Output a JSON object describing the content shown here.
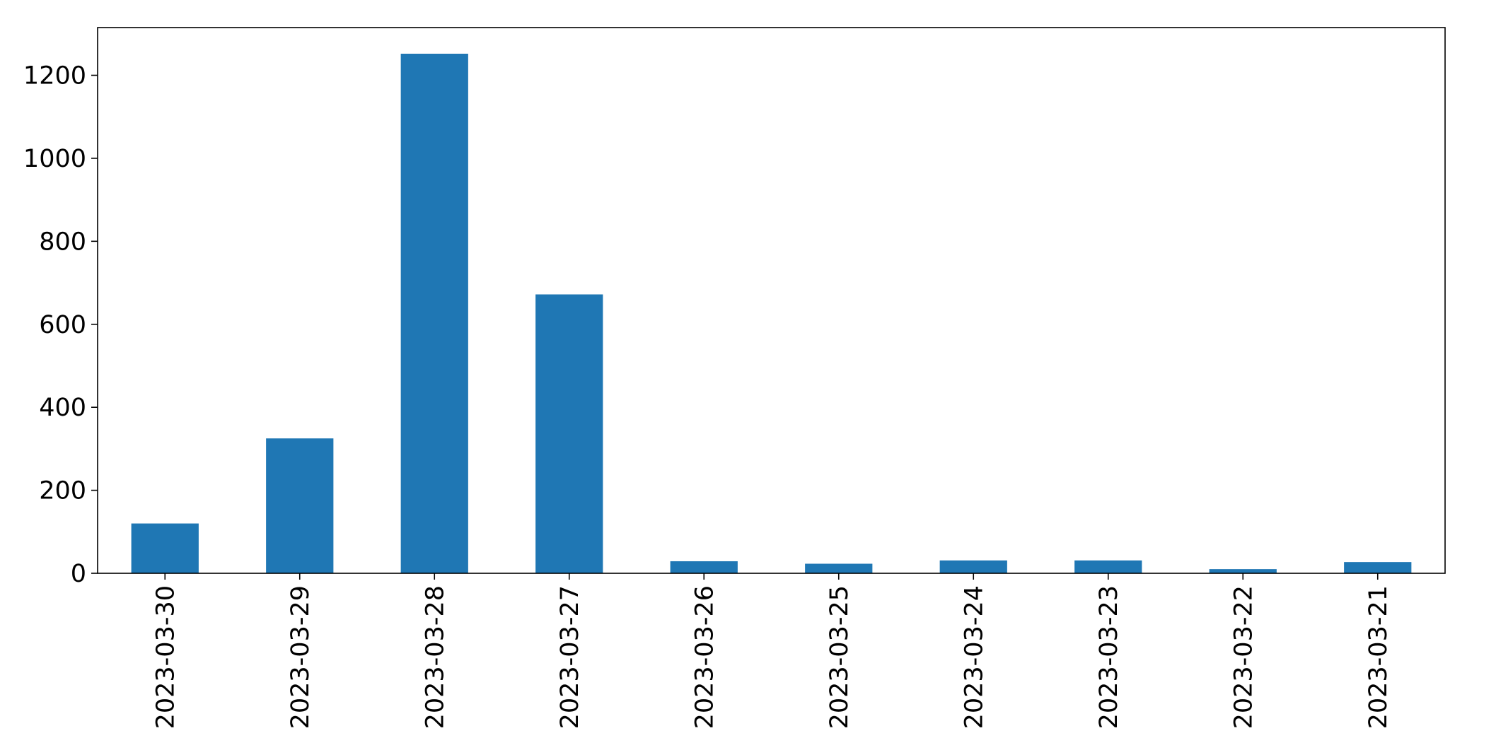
{
  "chart_data": {
    "type": "bar",
    "title": "",
    "xlabel": "",
    "ylabel": "",
    "categories": [
      "2023-03-30",
      "2023-03-29",
      "2023-03-28",
      "2023-03-27",
      "2023-03-26",
      "2023-03-25",
      "2023-03-24",
      "2023-03-23",
      "2023-03-22",
      "2023-03-21"
    ],
    "values": [
      120,
      325,
      1252,
      672,
      29,
      23,
      31,
      31,
      10,
      27
    ],
    "ylim": [
      0,
      1315
    ],
    "yticks": [
      0,
      200,
      400,
      600,
      800,
      1000,
      1200
    ],
    "bar_color": "#1f77b4",
    "grid": false,
    "legend": false
  }
}
